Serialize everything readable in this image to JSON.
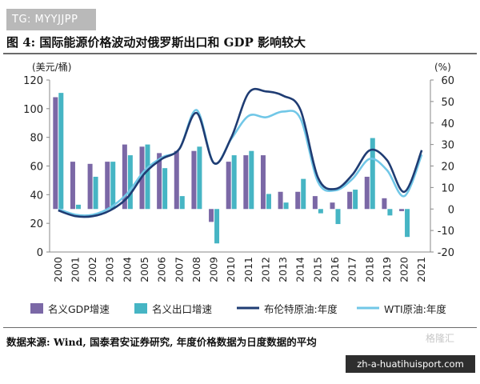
{
  "watermark_tag": "TG: MYYJJPP",
  "figure_title": "图 4: 国际能源价格波动对俄罗斯出口和 GDP 影响较大",
  "source_note": "数据来源: Wind, 国泰君安证券研究, 年度价格数据为日度数据的平均",
  "watermark_site": "zh-a-huatihuisport.com",
  "watermark_logo": "格隆汇",
  "colors": {
    "gdp_bar": "#7b68a6",
    "export_bar": "#46b5c4",
    "brent_line": "#1f3c73",
    "wti_line": "#71c7e7"
  },
  "chart_data": {
    "type": "bar+line",
    "categories": [
      "2000",
      "2001",
      "2002",
      "2003",
      "2004",
      "2005",
      "2006",
      "2007",
      "2008",
      "2009",
      "2010",
      "2011",
      "2012",
      "2013",
      "2014",
      "2015",
      "2016",
      "2017",
      "2018",
      "2019",
      "2020",
      "2021"
    ],
    "left_axis": {
      "label": "(美元/桶)",
      "range": [
        0,
        120
      ],
      "ticks": [
        0,
        20,
        40,
        60,
        80,
        100,
        120
      ]
    },
    "right_axis": {
      "label": "(%)",
      "range": [
        -20,
        60
      ],
      "ticks": [
        -20,
        -10,
        0,
        10,
        20,
        30,
        40,
        50,
        60
      ]
    },
    "series": [
      {
        "name": "名义GDP增速",
        "type": "bar",
        "axis": "right",
        "color": "#7b68a6",
        "values": [
          52,
          22,
          21,
          22,
          30,
          29,
          26,
          27,
          27,
          -6,
          22,
          25,
          25,
          8,
          8,
          6,
          3,
          8,
          15,
          5,
          -1,
          0
        ]
      },
      {
        "name": "名义出口增速",
        "type": "bar",
        "axis": "right",
        "color": "#46b5c4",
        "values": [
          54,
          2,
          15,
          22,
          25,
          30,
          19,
          6,
          29,
          -16,
          25,
          27,
          7,
          3,
          14,
          -2,
          -7,
          9,
          33,
          -3,
          -13,
          0
        ]
      },
      {
        "name": "布伦特原油:年度",
        "type": "line",
        "axis": "left",
        "color": "#1f3c73",
        "values": [
          29,
          25,
          25,
          29,
          38,
          55,
          65,
          72,
          97,
          62,
          80,
          111,
          112,
          109,
          99,
          52,
          44,
          54,
          71,
          64,
          42,
          71
        ]
      },
      {
        "name": "WTI原油:年度",
        "type": "line",
        "axis": "left",
        "color": "#71c7e7",
        "values": [
          30,
          26,
          26,
          31,
          41,
          57,
          66,
          72,
          99,
          62,
          79,
          95,
          94,
          98,
          93,
          49,
          43,
          51,
          65,
          57,
          39,
          68
        ]
      }
    ],
    "legend_position": "bottom",
    "grid": false
  }
}
